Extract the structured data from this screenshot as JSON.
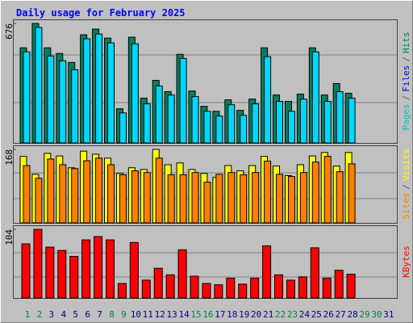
{
  "title": "Daily usage for February 2025",
  "chart_data": [
    {
      "type": "bar",
      "ylim": [
        0,
        676
      ],
      "yticks": [
        676
      ],
      "legend": [
        {
          "text": "Pages",
          "color": "#00c0c0"
        },
        {
          "text": "/",
          "color": "#606060"
        },
        {
          "text": "Files",
          "color": "#0000ff"
        },
        {
          "text": "/",
          "color": "#606060"
        },
        {
          "text": "Hits",
          "color": "#008060"
        }
      ],
      "series": [
        {
          "name": "Hits",
          "color": "#008060",
          "values": [
            538,
            676,
            538,
            506,
            455,
            612,
            644,
            593,
            193,
            598,
            253,
            354,
            290,
            501,
            294,
            207,
            179,
            244,
            184,
            248,
            538,
            271,
            235,
            276,
            538,
            271,
            336,
            281,
            null,
            null,
            null
          ]
        },
        {
          "name": "Files",
          "color": "#00d8ff",
          "values": [
            515,
            653,
            492,
            465,
            414,
            589,
            616,
            566,
            170,
            561,
            221,
            322,
            271,
            478,
            262,
            179,
            152,
            216,
            156,
            221,
            488,
            235,
            179,
            248,
            515,
            235,
            290,
            253,
            null,
            null,
            null
          ]
        }
      ]
    },
    {
      "type": "bar",
      "ylim": [
        0,
        168
      ],
      "yticks": [
        168
      ],
      "legend": [
        {
          "text": "Sites",
          "color": "#ff8000"
        },
        {
          "text": "/",
          "color": "#606060"
        },
        {
          "text": "Visits",
          "color": "#ffff00"
        }
      ],
      "series": [
        {
          "name": "Visits",
          "color": "#ffff00",
          "values": [
            152,
            111,
            159,
            153,
            126,
            164,
            157,
            148,
            113,
            126,
            122,
            168,
            133,
            137,
            122,
            113,
            104,
            131,
            119,
            131,
            152,
            130,
            108,
            133,
            153,
            161,
            130,
            161,
            null,
            null,
            null
          ]
        },
        {
          "name": "Sites",
          "color": "#ff8000",
          "values": [
            131,
            102,
            146,
            133,
            124,
            142,
            148,
            133,
            110,
            119,
            115,
            148,
            110,
            110,
            115,
            93,
            111,
            115,
            110,
            115,
            141,
            111,
            106,
            115,
            139,
            152,
            117,
            135,
            null,
            null,
            null
          ]
        }
      ]
    },
    {
      "type": "bar",
      "ylim": [
        0,
        104
      ],
      "yticks": [
        104
      ],
      "legend": [
        {
          "text": "KBytes",
          "color": "#ff0000"
        }
      ],
      "categories": [
        "1",
        "2",
        "3",
        "4",
        "5",
        "6",
        "7",
        "8",
        "9",
        "10",
        "11",
        "12",
        "13",
        "14",
        "15",
        "16",
        "17",
        "18",
        "19",
        "20",
        "21",
        "22",
        "23",
        "24",
        "25",
        "26",
        "27",
        "28",
        "29",
        "30",
        "31"
      ],
      "label_colors": [
        "#008040",
        "#008040",
        "#000080",
        "#000080",
        "#000080",
        "#000080",
        "#000080",
        "#008040",
        "#008040",
        "#000080",
        "#000080",
        "#000080",
        "#000080",
        "#000080",
        "#008040",
        "#008040",
        "#000080",
        "#000080",
        "#000080",
        "#000080",
        "#000080",
        "#008040",
        "#008040",
        "#000080",
        "#000080",
        "#000080",
        "#000080",
        "#000080",
        "#008040",
        "#008040",
        "#000080"
      ],
      "series": [
        {
          "name": "KBytes",
          "color": "#ff0000",
          "values": [
            82,
            104,
            77,
            72,
            63,
            88,
            93,
            88,
            22,
            84,
            27,
            45,
            35,
            73,
            33,
            22,
            20,
            30,
            21,
            30,
            79,
            35,
            27,
            32,
            76,
            30,
            42,
            36,
            null,
            null,
            null
          ]
        }
      ]
    }
  ]
}
